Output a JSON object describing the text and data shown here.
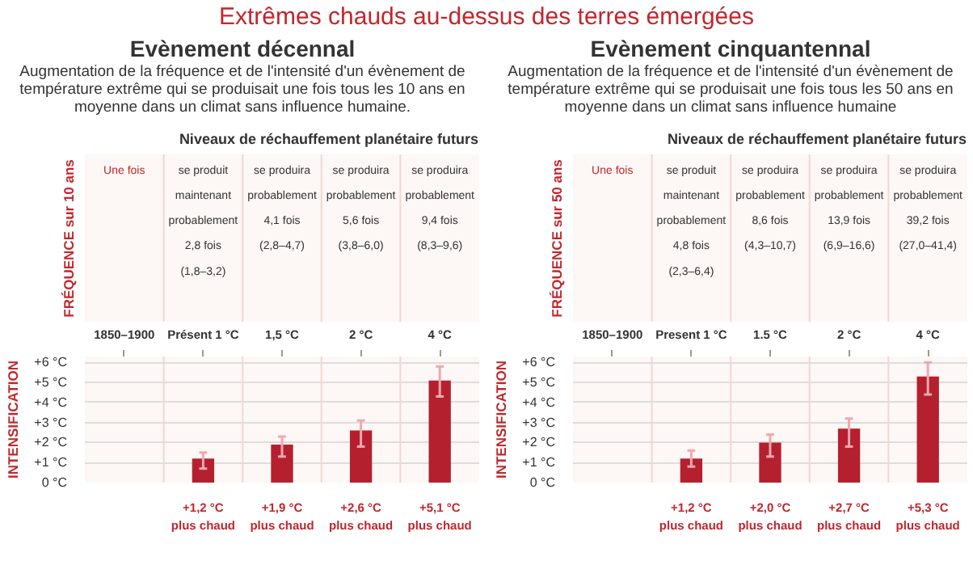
{
  "chart_data": [
    {
      "type": "bar",
      "title": "Evènement décennal",
      "subtitle": "Augmentation de la fréquence et de  l'intensité d'un évènement de température extrême qui se produisait une fois tous les 10 ans en moyenne dans un climat sans influence humaine.",
      "categories": [
        "1850–1900",
        "Présent 1 °C",
        "1,5 °C",
        "2 °C",
        "4 °C"
      ],
      "values": [
        null,
        1.2,
        1.9,
        2.6,
        5.1
      ],
      "errors": [
        null,
        [
          0.7,
          1.5
        ],
        [
          1.3,
          2.3
        ],
        [
          1.8,
          3.1
        ],
        [
          4.3,
          5.8
        ]
      ],
      "value_labels": [
        null,
        "+1,2 °C\nplus chaud",
        "+1,9 °C\nplus chaud",
        "+2,6 °C\nplus chaud",
        "+5,1 °C\nplus chaud"
      ],
      "color": "#b5202e",
      "ylabel": "INTENSIFICATION",
      "ylim": [
        0,
        6.3
      ],
      "yticks": [
        {
          "value": 0,
          "label": "0 °C"
        },
        {
          "value": 1,
          "label": "+1 °C"
        },
        {
          "value": 2,
          "label": "+2 °C"
        },
        {
          "value": 3,
          "label": "+3 °C"
        },
        {
          "value": 4,
          "label": "+4 °C"
        },
        {
          "value": 5,
          "label": "+5 °C"
        },
        {
          "value": 6,
          "label": "+6 °C"
        }
      ],
      "grid": "y",
      "annotations": [
        "Extrêmes chauds au-dessus des terres émergées",
        "Niveaux de réchauffement planétaire futurs",
        "FRÉQUENCE sur 10 ans",
        "Une fois",
        "se produit\nmaintenant\nprobablement\n2,8 fois\n(1,8–3,2)",
        "se produira\nprobablement\n4,1 fois\n(2,8–4,7)",
        "se produira\nprobablement\n5,6 fois\n(3,8–6,0)",
        "se produira\nprobablement\n9,4 fois\n(8,3–9,6)"
      ]
    },
    {
      "type": "bar",
      "title": "Evènement cinquantennal",
      "subtitle": "Augmentation de la fréquence et de  l'intensité d'un évènement de température extrême qui se produisait une fois tous les 50 ans en moyenne dans un climat sans influence humaine",
      "categories": [
        "1850–1900",
        "Present 1 °C",
        "1.5 °C",
        "2 °C",
        "4 °C"
      ],
      "values": [
        null,
        1.2,
        2.0,
        2.7,
        5.3
      ],
      "errors": [
        null,
        [
          0.8,
          1.6
        ],
        [
          1.3,
          2.4
        ],
        [
          1.8,
          3.2
        ],
        [
          4.4,
          6.0
        ]
      ],
      "value_labels": [
        null,
        "+1,2 °C\nplus chaud",
        "+2,0 °C\nplus chaud",
        "+2,7 °C\nplus chaud",
        "+5,3 °C\nplus chaud"
      ],
      "color": "#b5202e",
      "ylabel": "INTENSIFICATION",
      "ylim": [
        0,
        6.3
      ],
      "yticks": [
        {
          "value": 0,
          "label": "0 °C"
        },
        {
          "value": 1,
          "label": "+1 °C"
        },
        {
          "value": 2,
          "label": "+2 °C"
        },
        {
          "value": 3,
          "label": "+3 °C"
        },
        {
          "value": 4,
          "label": "+4 °C"
        },
        {
          "value": 5,
          "label": "+5 °C"
        },
        {
          "value": 6,
          "label": "+6 °C"
        }
      ],
      "grid": "y",
      "annotations": [
        "Niveaux de réchauffement planétaire futurs",
        "FRÉQUENCE sur 50 ans",
        "Une fois",
        "se produit\nmaintenant\nprobablement\n4,8 fois\n(2,3–6,4)",
        "se produira\nprobablement\n8,6 fois\n(4,3–10,7)",
        "se produira\nprobablement\n13,9 fois\n(6,9–16,6)",
        "se produira\nprobablement\n39,2 fois\n(27,0–41,4)"
      ]
    }
  ]
}
